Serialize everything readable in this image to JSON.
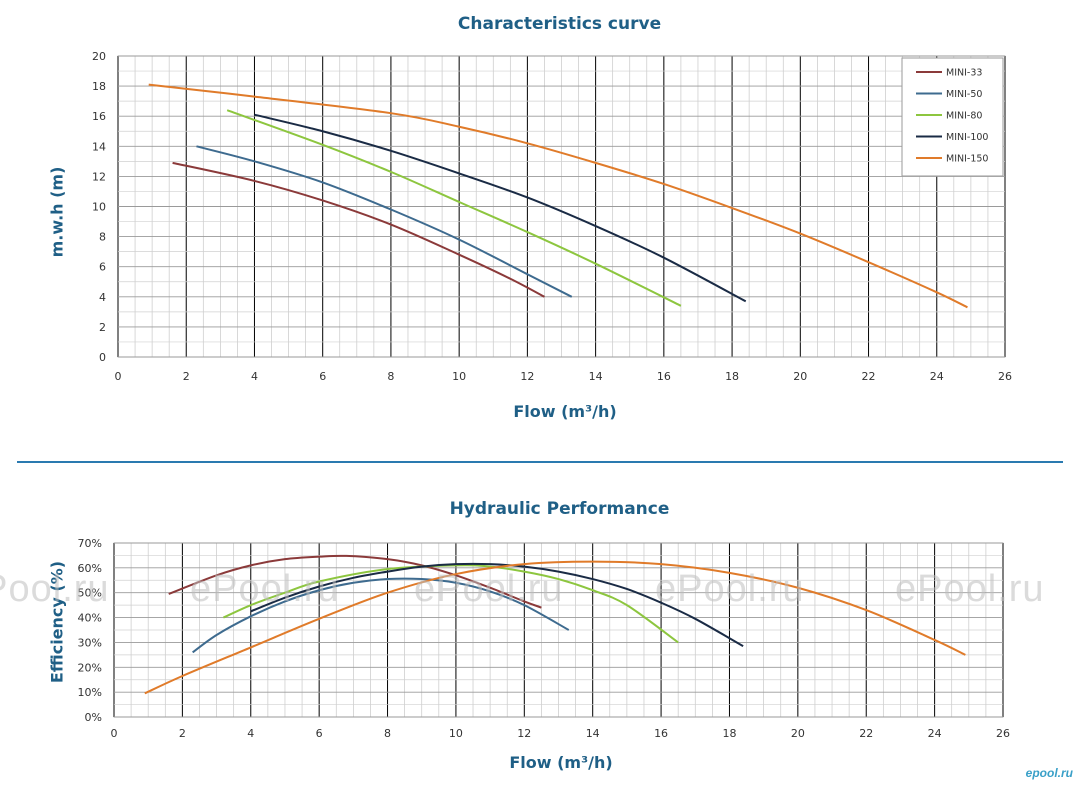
{
  "watermark_text": "ePool.ru",
  "logo_text": "epool.ru",
  "chart_data": [
    {
      "type": "line",
      "title": "Characteristics curve",
      "xlabel": "Flow (m³/h)",
      "ylabel": "m.w.h (m)",
      "xlim": [
        0,
        26
      ],
      "ylim": [
        0,
        20
      ],
      "xticks": [
        "0",
        "2",
        "4",
        "6",
        "8",
        "10",
        "12",
        "14",
        "16",
        "18",
        "20",
        "22",
        "24",
        "26"
      ],
      "yticks": [
        "0",
        "2",
        "4",
        "6",
        "8",
        "10",
        "12",
        "14",
        "16",
        "18",
        "20"
      ],
      "grid": true,
      "legend_position": "top-right",
      "series": [
        {
          "name": "MINI-33",
          "color": "#8b3a3a",
          "x": [
            1.6,
            4,
            6,
            8,
            10,
            11.5,
            12.5
          ],
          "y": [
            12.9,
            11.7,
            10.4,
            8.8,
            6.8,
            5.2,
            4.0
          ]
        },
        {
          "name": "MINI-50",
          "color": "#3e6b8f",
          "x": [
            2.3,
            4,
            6,
            8,
            10,
            12,
            13.3
          ],
          "y": [
            14.0,
            13.0,
            11.6,
            9.8,
            7.8,
            5.5,
            4.0
          ]
        },
        {
          "name": "MINI-80",
          "color": "#8dc63f",
          "x": [
            3.2,
            6,
            8,
            10,
            12,
            14,
            16.5
          ],
          "y": [
            16.4,
            14.1,
            12.3,
            10.3,
            8.3,
            6.2,
            3.4
          ]
        },
        {
          "name": "MINI-100",
          "color": "#1a2b45",
          "x": [
            4,
            6,
            8,
            10,
            12,
            14,
            16,
            18.4
          ],
          "y": [
            16.1,
            15.0,
            13.7,
            12.2,
            10.6,
            8.7,
            6.6,
            3.7
          ]
        },
        {
          "name": "MINI-150",
          "color": "#e07b2a",
          "x": [
            0.9,
            4,
            8,
            10,
            12,
            14,
            16,
            18,
            20,
            22,
            24,
            24.9
          ],
          "y": [
            18.1,
            17.3,
            16.2,
            15.3,
            14.2,
            12.9,
            11.5,
            9.9,
            8.2,
            6.3,
            4.3,
            3.3
          ]
        }
      ]
    },
    {
      "type": "line",
      "title": "Hydraulic Performance",
      "xlabel": "Flow (m³/h)",
      "ylabel": "Efficiency (%)",
      "xlim": [
        0,
        26
      ],
      "ylim": [
        0,
        70
      ],
      "xticks": [
        "0",
        "2",
        "4",
        "6",
        "8",
        "10",
        "12",
        "14",
        "16",
        "18",
        "20",
        "22",
        "24",
        "26"
      ],
      "yticks": [
        "0%",
        "10%",
        "20%",
        "30%",
        "40%",
        "50%",
        "60%",
        "70%"
      ],
      "grid": true,
      "series": [
        {
          "color": "#8b3a3a",
          "x": [
            1.6,
            3,
            4,
            5,
            6,
            6.8,
            8,
            9,
            10,
            11,
            12,
            12.5
          ],
          "y": [
            49.5,
            57,
            61,
            63.5,
            64.5,
            64.8,
            63.5,
            61,
            57,
            52,
            46.5,
            44
          ]
        },
        {
          "color": "#3e6b8f",
          "x": [
            2.3,
            3,
            4,
            5,
            6,
            7,
            8,
            9,
            10,
            11,
            12,
            13.3
          ],
          "y": [
            26,
            33,
            40.5,
            46.5,
            51,
            54,
            55.5,
            55.5,
            54,
            50.5,
            45,
            35
          ]
        },
        {
          "color": "#8dc63f",
          "x": [
            3.2,
            4,
            5,
            6,
            8,
            10,
            11,
            12,
            13,
            14,
            15,
            16.5
          ],
          "y": [
            40,
            45,
            50,
            54.5,
            59.5,
            61,
            60.5,
            58.5,
            55.5,
            51,
            45,
            30
          ]
        },
        {
          "color": "#1a2b45",
          "x": [
            4,
            5,
            6,
            7,
            8,
            9,
            10,
            11,
            12,
            13,
            14,
            15,
            16,
            17,
            18.4
          ],
          "y": [
            42.5,
            48,
            52.5,
            56,
            58.5,
            60.5,
            61.5,
            61.5,
            60.5,
            58.5,
            55.5,
            51.5,
            46,
            39.5,
            28.5
          ]
        },
        {
          "color": "#e07b2a",
          "x": [
            0.9,
            2,
            4,
            6,
            8,
            10,
            12,
            14,
            16,
            18,
            20,
            22,
            24,
            24.9
          ],
          "y": [
            9.5,
            16.5,
            28,
            39.5,
            50,
            57.5,
            61.5,
            62.5,
            61.5,
            58,
            52,
            43,
            31,
            25
          ]
        }
      ]
    }
  ]
}
